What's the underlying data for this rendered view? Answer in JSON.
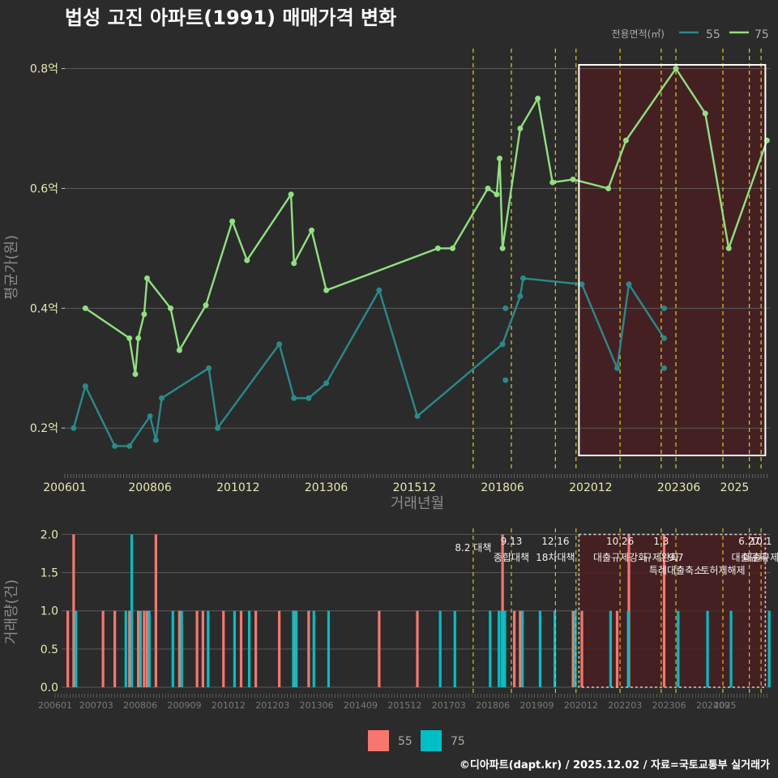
{
  "title": "법성 고진 아파트(1991) 매매가격 변화",
  "credit": "©디아파트(dapt.kr) / 2025.12.02 / 자료=국토교통부 실거래가",
  "colors": {
    "s55": "#2a8a8a",
    "s75": "#90e080",
    "bar55": "#f8766d",
    "bar75": "#00bfc4",
    "policy": "#d4c020",
    "highlight": "#4a1e22"
  },
  "chart_data": [
    {
      "type": "line",
      "title": "법성 고진 아파트(1991) 매매가격 변화",
      "xlabel": "거래년월",
      "ylabel": "평균가(원)",
      "legend_title": "전용면적(㎡)",
      "legend": [
        "55",
        "75"
      ],
      "ylim": [
        0.13,
        0.84
      ],
      "yticks": [
        0.2,
        0.4,
        0.6,
        0.8
      ],
      "ytick_labels": [
        "0.2억",
        "0.4억",
        "0.6억",
        "0.8억"
      ],
      "xticks": [
        "200601",
        "200806",
        "201012",
        "201306",
        "201512",
        "201806",
        "202012",
        "202306",
        "2025"
      ],
      "series": [
        {
          "name": "55",
          "points": [
            [
              "2006-04",
              0.2
            ],
            [
              "2006-08",
              0.27
            ],
            [
              "2007-06",
              0.17
            ],
            [
              "2007-11",
              0.17
            ],
            [
              "2008-06",
              0.22
            ],
            [
              "2008-08",
              0.18
            ],
            [
              "2008-10",
              0.25
            ],
            [
              "2010-02",
              0.3
            ],
            [
              "2010-05",
              0.2
            ],
            [
              "2012-02",
              0.34
            ],
            [
              "2012-07",
              0.25
            ],
            [
              "2012-12",
              0.25
            ],
            [
              "2013-06",
              0.275
            ],
            [
              "2014-12",
              0.43
            ],
            [
              "2016-01",
              0.22
            ],
            [
              "2018-06",
              0.34
            ],
            [
              "2018-12",
              0.42
            ],
            [
              "2019-01",
              0.45
            ],
            [
              "2020-09",
              0.44
            ],
            [
              "2021-09",
              0.3
            ],
            [
              "2022-01",
              0.44
            ],
            [
              "2023-01",
              0.35
            ]
          ]
        },
        {
          "name": "75",
          "points": [
            [
              "2006-08",
              0.4
            ],
            [
              "2007-11",
              0.35
            ],
            [
              "2008-01",
              0.29
            ],
            [
              "2008-02",
              0.35
            ],
            [
              "2008-04",
              0.39
            ],
            [
              "2008-05",
              0.45
            ],
            [
              "2009-01",
              0.4
            ],
            [
              "2009-04",
              0.33
            ],
            [
              "2010-01",
              0.405
            ],
            [
              "2010-10",
              0.545
            ],
            [
              "2011-03",
              0.48
            ],
            [
              "2012-06",
              0.59
            ],
            [
              "2012-07",
              0.475
            ],
            [
              "2013-01",
              0.53
            ],
            [
              "2013-06",
              0.43
            ],
            [
              "2016-08",
              0.5
            ],
            [
              "2017-01",
              0.5
            ],
            [
              "2018-01",
              0.6
            ],
            [
              "2018-04",
              0.59
            ],
            [
              "2018-05",
              0.65
            ],
            [
              "2018-06",
              0.5
            ],
            [
              "2018-12",
              0.7
            ],
            [
              "2019-06",
              0.75
            ],
            [
              "2019-11",
              0.61
            ],
            [
              "2020-06",
              0.615
            ],
            [
              "2021-06",
              0.6
            ],
            [
              "2021-12",
              0.68
            ],
            [
              "2023-05",
              0.8
            ],
            [
              "2024-03",
              0.725
            ],
            [
              "2024-11",
              0.5
            ],
            [
              "2025-12",
              0.68
            ]
          ]
        }
      ],
      "extra_points": [
        {
          "series": "55",
          "points": [
            [
              "2018-07",
              0.4
            ],
            [
              "2018-07",
              0.28
            ],
            [
              "2023-01",
              0.4
            ],
            [
              "2023-01",
              0.3
            ]
          ]
        }
      ],
      "policy_dates": [
        "2017-08",
        "2018-09",
        "2019-12",
        "2020-07",
        "2021-10",
        "2022-12",
        "2023-05",
        "2024-09",
        "2025-06",
        "2025-10"
      ],
      "highlight_range": [
        "2020-08",
        "2025-12"
      ]
    },
    {
      "type": "bar",
      "ylabel": "거래량(건)",
      "ylim": [
        0,
        2.1
      ],
      "yticks": [
        0.0,
        0.5,
        1.0,
        1.5,
        2.0
      ],
      "ytick_labels": [
        "0.0",
        "0.5",
        "1.0",
        "1.5",
        "2.0"
      ],
      "xticks": [
        "200601",
        "200703",
        "200806",
        "200909",
        "201012",
        "201203",
        "201306",
        "201409",
        "201512",
        "201703",
        "201806",
        "201909",
        "202012",
        "202203",
        "202306",
        "202409",
        "2025"
      ],
      "legend": [
        "55",
        "75"
      ],
      "bars_55": [
        [
          "2006-02",
          1
        ],
        [
          "2006-04",
          2
        ],
        [
          "2007-02",
          1
        ],
        [
          "2007-06",
          1
        ],
        [
          "2007-11",
          1
        ],
        [
          "2008-02",
          1
        ],
        [
          "2008-04",
          1
        ],
        [
          "2008-05",
          1
        ],
        [
          "2008-08",
          2
        ],
        [
          "2009-04",
          1
        ],
        [
          "2009-10",
          1
        ],
        [
          "2009-12",
          1
        ],
        [
          "2010-07",
          1
        ],
        [
          "2011-01",
          1
        ],
        [
          "2011-06",
          1
        ],
        [
          "2012-02",
          1
        ],
        [
          "2012-07",
          1
        ],
        [
          "2012-12",
          1
        ],
        [
          "2014-12",
          1
        ],
        [
          "2016-01",
          1
        ],
        [
          "2018-06",
          2
        ],
        [
          "2018-10",
          1
        ],
        [
          "2018-12",
          1
        ],
        [
          "2020-06",
          1
        ],
        [
          "2020-09",
          1
        ],
        [
          "2021-09",
          1
        ],
        [
          "2022-01",
          2
        ],
        [
          "2023-01",
          2
        ]
      ],
      "bars_75": [
        [
          "2006-04",
          1
        ],
        [
          "2007-09",
          1
        ],
        [
          "2007-11",
          2
        ],
        [
          "2008-02",
          1
        ],
        [
          "2008-05",
          1
        ],
        [
          "2009-01",
          1
        ],
        [
          "2009-04",
          1
        ],
        [
          "2010-01",
          1
        ],
        [
          "2010-10",
          1
        ],
        [
          "2011-03",
          1
        ],
        [
          "2012-06",
          1
        ],
        [
          "2012-07",
          1
        ],
        [
          "2013-01",
          1
        ],
        [
          "2013-06",
          1
        ],
        [
          "2016-08",
          1
        ],
        [
          "2017-01",
          1
        ],
        [
          "2018-01",
          1
        ],
        [
          "2018-04",
          1
        ],
        [
          "2018-05",
          1
        ],
        [
          "2018-06",
          1
        ],
        [
          "2018-12",
          1
        ],
        [
          "2019-06",
          1
        ],
        [
          "2019-11",
          1
        ],
        [
          "2020-06",
          1
        ],
        [
          "2021-06",
          1
        ],
        [
          "2021-12",
          1
        ],
        [
          "2023-05",
          1
        ],
        [
          "2024-03",
          1
        ],
        [
          "2024-11",
          1
        ],
        [
          "2025-12",
          1
        ]
      ],
      "policy_labels": [
        {
          "date": "2017-08",
          "text": "8.2 대책",
          "row": 1
        },
        {
          "date": "2018-09",
          "text": "9.13",
          "row": 0
        },
        {
          "date": "2018-09",
          "text": "종합대책",
          "row": 2
        },
        {
          "date": "2019-12",
          "text": "12.16",
          "row": 0
        },
        {
          "date": "2019-12",
          "text": "18차대책",
          "row": 2
        },
        {
          "date": "2021-10",
          "text": "10.26",
          "row": 0
        },
        {
          "date": "2021-10",
          "text": "대출규제강화",
          "row": 2
        },
        {
          "date": "2022-12",
          "text": "1.3",
          "row": 0
        },
        {
          "date": "2022-12",
          "text": "규제완화",
          "row": 2
        },
        {
          "date": "2023-05",
          "text": "9.7",
          "row": 2
        },
        {
          "date": "2023-05",
          "text": "특례대출축소",
          "row": 3
        },
        {
          "date": "2024-09",
          "text": "토허제해제",
          "row": 3
        },
        {
          "date": "2025-06",
          "text": "6.27",
          "row": 0
        },
        {
          "date": "2025-06",
          "text": "대출규제",
          "row": 2
        },
        {
          "date": "2025-10",
          "text": "10.1",
          "row": 0
        },
        {
          "date": "2025-10",
          "text": "대출규제",
          "row": 2
        }
      ]
    }
  ]
}
